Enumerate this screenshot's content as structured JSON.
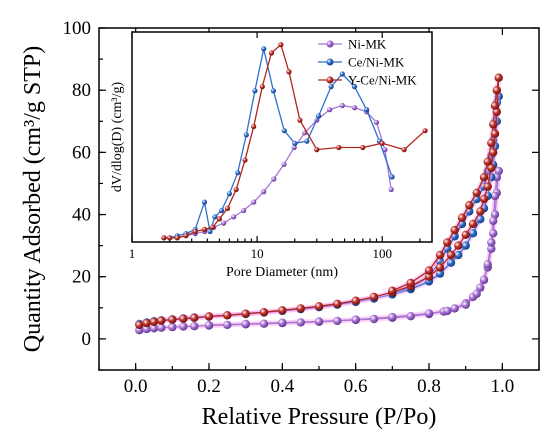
{
  "chart_data": [
    {
      "type": "line",
      "title": "",
      "xlabel": "Relative Pressure (P/Po)",
      "ylabel": "Quantity Adsorbed (cm³/g STP)",
      "xlim": [
        -0.1,
        1.1
      ],
      "ylim": [
        -10,
        100
      ],
      "xticks": [
        "0.0",
        "0.2",
        "0.4",
        "0.6",
        "0.8",
        "1.0"
      ],
      "yticks": [
        "0",
        "20",
        "40",
        "60",
        "80",
        "100"
      ],
      "series": [
        {
          "name": "Ni-MK",
          "color": "#a876d6",
          "marker": "sphere",
          "x": [
            0.01,
            0.03,
            0.05,
            0.07,
            0.1,
            0.13,
            0.16,
            0.2,
            0.25,
            0.3,
            0.35,
            0.4,
            0.45,
            0.5,
            0.55,
            0.6,
            0.65,
            0.7,
            0.75,
            0.8,
            0.84,
            0.87,
            0.9,
            0.92,
            0.94,
            0.95,
            0.96,
            0.97,
            0.975,
            0.98,
            0.985,
            0.99,
            0.985,
            0.98,
            0.975,
            0.97,
            0.96,
            0.95,
            0.93,
            0.9,
            0.85,
            0.8,
            0.7,
            0.6,
            0.5,
            0.4,
            0.3,
            0.2
          ],
          "y": [
            2.8,
            3.2,
            3.4,
            3.6,
            3.8,
            4.0,
            4.1,
            4.3,
            4.5,
            4.7,
            4.9,
            5.1,
            5.3,
            5.5,
            5.8,
            6.1,
            6.4,
            6.8,
            7.3,
            8.0,
            8.8,
            9.8,
            11.5,
            13.5,
            16.5,
            19.0,
            23.0,
            29.0,
            34.0,
            40.0,
            47.0,
            54.0,
            52.0,
            46.0,
            38.0,
            31.0,
            24.0,
            19.0,
            14.5,
            11.0,
            9.0,
            8.2,
            7.0,
            6.2,
            5.6,
            5.2,
            4.8,
            4.4
          ]
        },
        {
          "name": "Ce/Ni-MK",
          "color": "#2f6fd0",
          "marker": "sphere",
          "x": [
            0.01,
            0.03,
            0.05,
            0.07,
            0.1,
            0.13,
            0.16,
            0.2,
            0.25,
            0.3,
            0.35,
            0.4,
            0.45,
            0.5,
            0.55,
            0.6,
            0.65,
            0.7,
            0.75,
            0.8,
            0.83,
            0.86,
            0.88,
            0.9,
            0.92,
            0.94,
            0.95,
            0.96,
            0.97,
            0.975,
            0.98,
            0.985,
            0.99,
            0.985,
            0.98,
            0.975,
            0.97,
            0.96,
            0.95,
            0.93,
            0.91,
            0.89,
            0.87,
            0.85,
            0.83,
            0.8,
            0.75,
            0.7
          ],
          "y": [
            4.8,
            5.3,
            5.7,
            6.0,
            6.3,
            6.6,
            6.9,
            7.2,
            7.6,
            8.0,
            8.5,
            9.0,
            9.6,
            10.2,
            11.0,
            11.9,
            13.0,
            14.3,
            16.0,
            18.5,
            21.0,
            24.5,
            27.0,
            30.0,
            34.0,
            38.5,
            42.0,
            46.0,
            52.0,
            56.0,
            62.0,
            70.0,
            78.0,
            76.0,
            70.0,
            64.0,
            59.0,
            54.0,
            49.0,
            45.0,
            41.0,
            37.0,
            33.0,
            29.0,
            25.0,
            20.0,
            16.5,
            14.8
          ]
        },
        {
          "name": "Y-Ce/Ni-MK",
          "color": "#b1251f",
          "marker": "sphere",
          "x": [
            0.01,
            0.03,
            0.05,
            0.07,
            0.1,
            0.13,
            0.16,
            0.2,
            0.25,
            0.3,
            0.35,
            0.4,
            0.45,
            0.5,
            0.55,
            0.6,
            0.65,
            0.7,
            0.75,
            0.8,
            0.83,
            0.86,
            0.88,
            0.9,
            0.92,
            0.94,
            0.95,
            0.96,
            0.97,
            0.975,
            0.98,
            0.985,
            0.99,
            0.985,
            0.98,
            0.975,
            0.97,
            0.96,
            0.95,
            0.93,
            0.91,
            0.89,
            0.87,
            0.85,
            0.83,
            0.8,
            0.75,
            0.7
          ],
          "y": [
            4.5,
            5.1,
            5.5,
            5.9,
            6.2,
            6.5,
            6.8,
            7.2,
            7.6,
            8.1,
            8.6,
            9.2,
            9.8,
            10.5,
            11.3,
            12.3,
            13.5,
            15.0,
            17.0,
            20.0,
            23.0,
            27.0,
            30.0,
            33.5,
            37.0,
            41.0,
            45.0,
            49.0,
            55.0,
            60.0,
            66.0,
            73.0,
            84.0,
            80.0,
            75.0,
            69.0,
            63.0,
            57.0,
            52.0,
            47.0,
            43.0,
            39.0,
            35.0,
            31.0,
            27.0,
            22.0,
            18.0,
            15.5
          ]
        }
      ]
    },
    {
      "type": "line",
      "title": "",
      "xlabel": "Pore Diameter (nm)",
      "ylabel": "dV/dlog(D) (cm³/g)",
      "xscale": "log",
      "xlim": [
        1,
        250
      ],
      "ylim": [
        0,
        1
      ],
      "xticks": [
        "1",
        "10",
        "100"
      ],
      "legend_position": "top-right",
      "series": [
        {
          "name": "Ni-MK",
          "color": "#a876d6",
          "marker": "sphere",
          "x": [
            1.8,
            2.0,
            2.3,
            2.7,
            3.2,
            3.8,
            4.5,
            5.4,
            6.5,
            7.8,
            9.4,
            11.3,
            13.6,
            16.4,
            19.8,
            24,
            30,
            38,
            48,
            60,
            75,
            90,
            105,
            118
          ],
          "y": [
            0.02,
            0.02,
            0.02,
            0.03,
            0.04,
            0.05,
            0.07,
            0.09,
            0.12,
            0.15,
            0.19,
            0.24,
            0.3,
            0.37,
            0.45,
            0.52,
            0.58,
            0.63,
            0.65,
            0.64,
            0.62,
            0.57,
            0.44,
            0.25
          ]
        },
        {
          "name": "Ce/Ni-MK",
          "color": "#2f6fd0",
          "marker": "sphere",
          "x": [
            1.8,
            2.0,
            2.3,
            2.7,
            3.2,
            3.8,
            4.2,
            4.6,
            5.2,
            6.0,
            7.0,
            8.2,
            9.6,
            11.3,
            13.5,
            16.5,
            20,
            25,
            31,
            39,
            48,
            60,
            75,
            95,
            120
          ],
          "y": [
            0.02,
            0.02,
            0.03,
            0.04,
            0.06,
            0.19,
            0.05,
            0.12,
            0.15,
            0.23,
            0.33,
            0.51,
            0.72,
            0.92,
            0.72,
            0.53,
            0.47,
            0.48,
            0.6,
            0.74,
            0.8,
            0.74,
            0.63,
            0.48,
            0.31
          ]
        },
        {
          "name": "Y-Ce/Ni-MK",
          "color": "#b1251f",
          "marker": "sphere",
          "x": [
            1.8,
            2.0,
            2.3,
            2.7,
            3.2,
            3.8,
            4.4,
            5.0,
            5.8,
            6.8,
            8.0,
            9.4,
            11.0,
            13.0,
            15.5,
            18,
            22,
            30,
            45,
            70,
            100,
            150,
            220
          ],
          "y": [
            0.02,
            0.02,
            0.02,
            0.03,
            0.05,
            0.06,
            0.07,
            0.11,
            0.16,
            0.25,
            0.39,
            0.55,
            0.74,
            0.9,
            0.94,
            0.81,
            0.58,
            0.44,
            0.45,
            0.45,
            0.47,
            0.44,
            0.53
          ]
        }
      ]
    }
  ]
}
